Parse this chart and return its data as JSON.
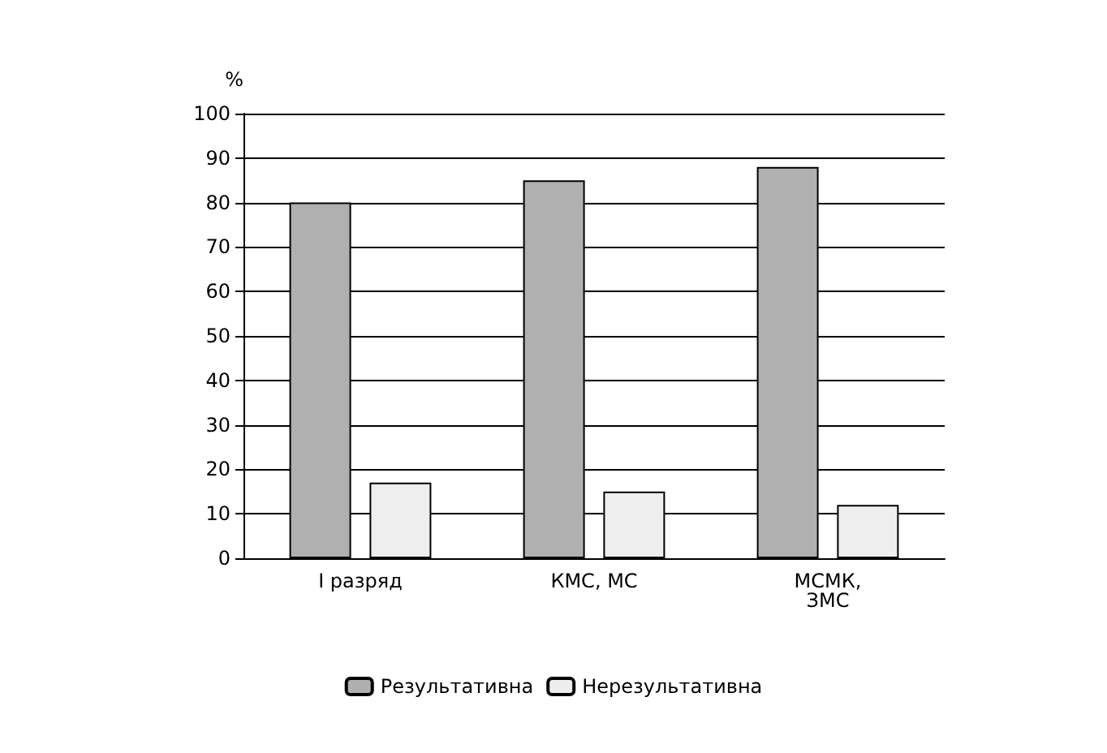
{
  "chart_data": {
    "type": "bar",
    "ylabel": "%",
    "categories": [
      "I разряд",
      "КМС, МС",
      "МСМК,\nЗМС"
    ],
    "series": [
      {
        "name": "Результативна",
        "color": "#b0b0b0",
        "values": [
          80,
          85,
          88
        ]
      },
      {
        "name": "Нерезультативна",
        "color": "#eeeeee",
        "values": [
          17,
          15,
          12
        ]
      }
    ],
    "ylim": [
      0,
      100
    ],
    "yticks": [
      0,
      10,
      20,
      30,
      40,
      50,
      60,
      70,
      80,
      90,
      100
    ],
    "grid": "y",
    "legend": "bottom"
  }
}
